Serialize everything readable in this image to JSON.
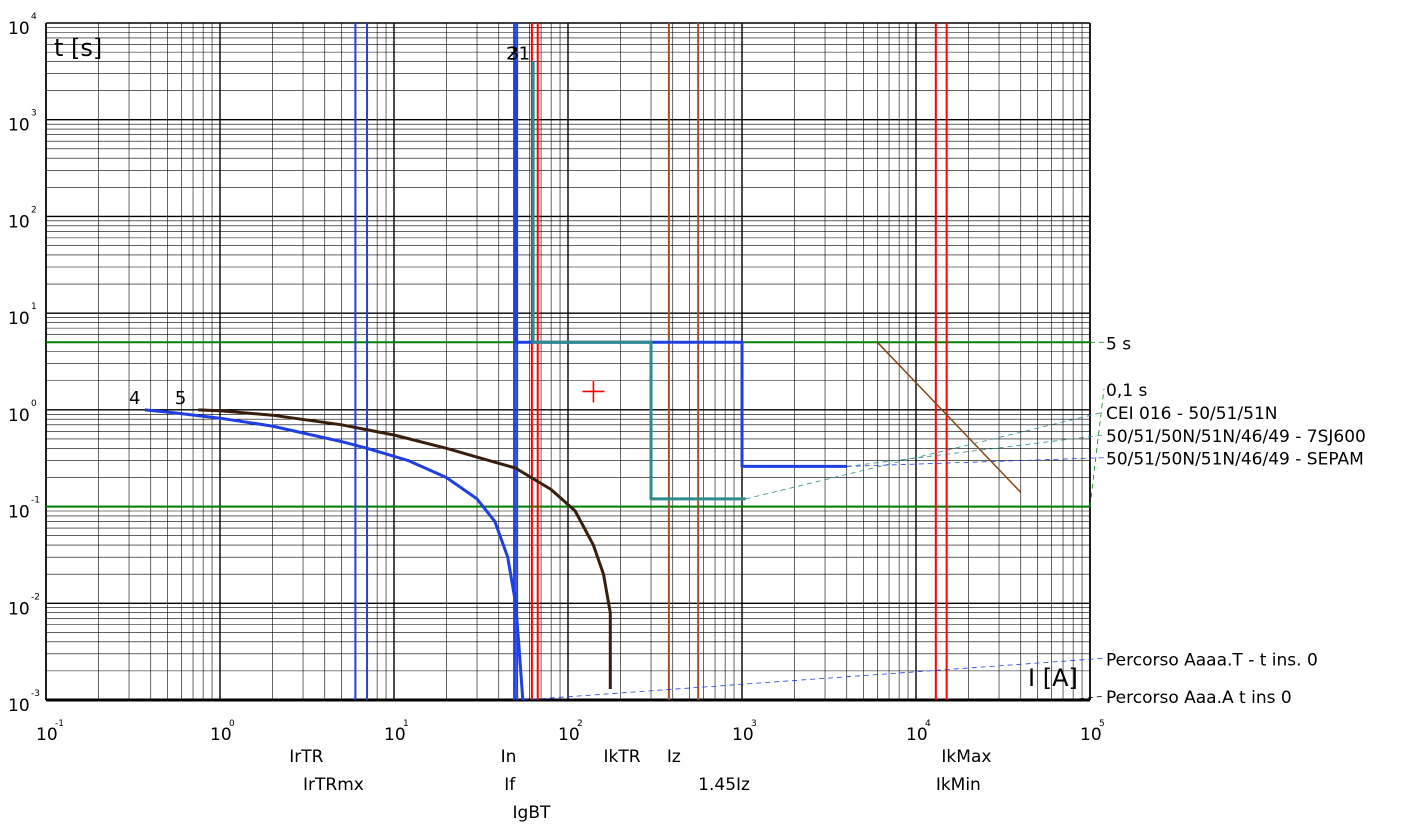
{
  "chart_data": {
    "type": "line",
    "title": "",
    "xlabel": "I [A]",
    "ylabel": "t [s]",
    "x_scale": "log",
    "y_scale": "log",
    "xlim": [
      0.1,
      100000
    ],
    "ylim": [
      0.001,
      10000
    ],
    "grid": true,
    "x_ticks": [
      {
        "base": "10",
        "exp": "-1"
      },
      {
        "base": "10",
        "exp": "0"
      },
      {
        "base": "10",
        "exp": "1"
      },
      {
        "base": "10",
        "exp": "2"
      },
      {
        "base": "10",
        "exp": "3"
      },
      {
        "base": "10",
        "exp": "4"
      },
      {
        "base": "10",
        "exp": "5"
      }
    ],
    "y_ticks": [
      {
        "base": "10",
        "exp": "4"
      },
      {
        "base": "10",
        "exp": "3"
      },
      {
        "base": "10",
        "exp": "2"
      },
      {
        "base": "10",
        "exp": "1"
      },
      {
        "base": "10",
        "exp": "0"
      },
      {
        "base": "10",
        "exp": "-1"
      },
      {
        "base": "10",
        "exp": "-2"
      },
      {
        "base": "10",
        "exp": "-3"
      }
    ],
    "horizontal_lines": [
      {
        "y": 5,
        "color": "#008000"
      },
      {
        "y": 0.1,
        "color": "#008000"
      }
    ],
    "vertical_lines": [
      {
        "x": 6,
        "color": "#1f3fe0"
      },
      {
        "x": 7,
        "color": "#1f3fe0"
      },
      {
        "x": 49,
        "color": "#1f3fe0"
      },
      {
        "x": 51,
        "color": "#1f3fe0"
      },
      {
        "x": 62,
        "color": "#ff0000"
      },
      {
        "x": 67,
        "color": "#ff0000"
      },
      {
        "x": 380,
        "color": "#a0522d"
      },
      {
        "x": 560,
        "color": "#a0522d"
      },
      {
        "x": 13000,
        "color": "#ff0000"
      },
      {
        "x": 15000,
        "color": "#ff0000"
      }
    ],
    "series": [
      {
        "color": "#1f3fe0",
        "width": 3,
        "points": [
          [
            50,
            4000
          ],
          [
            50,
            5
          ],
          [
            1000,
            5
          ],
          [
            1000,
            0.26
          ],
          [
            4000,
            0.26
          ]
        ]
      },
      {
        "color": "#2e8b8b",
        "width": 3,
        "points": [
          [
            63,
            4000
          ],
          [
            63,
            5
          ],
          [
            300,
            5
          ],
          [
            300,
            0.12
          ],
          [
            1050,
            0.12
          ]
        ]
      },
      {
        "color": "#1f3fe0",
        "width": 3,
        "points": [
          [
            0.37,
            1.0
          ],
          [
            0.55,
            0.93
          ],
          [
            1,
            0.82
          ],
          [
            2,
            0.68
          ],
          [
            5,
            0.47
          ],
          [
            7,
            0.4
          ],
          [
            12,
            0.3
          ],
          [
            20,
            0.2
          ],
          [
            30,
            0.12
          ],
          [
            38,
            0.07
          ],
          [
            45,
            0.03
          ],
          [
            50,
            0.01
          ],
          [
            52,
            0.004
          ],
          [
            55,
            0.001
          ]
        ]
      },
      {
        "color": "#3a1e0c",
        "width": 3,
        "points": [
          [
            0.75,
            1.0
          ],
          [
            1,
            0.98
          ],
          [
            2,
            0.88
          ],
          [
            5,
            0.7
          ],
          [
            10,
            0.55
          ],
          [
            20,
            0.4
          ],
          [
            35,
            0.3
          ],
          [
            50,
            0.25
          ],
          [
            80,
            0.15
          ],
          [
            110,
            0.09
          ],
          [
            140,
            0.04
          ],
          [
            160,
            0.02
          ],
          [
            175,
            0.008
          ],
          [
            175,
            0.0013
          ]
        ]
      },
      {
        "color": "#8b4513",
        "width": 1.5,
        "points": [
          [
            6000,
            5
          ],
          [
            40000,
            0.14
          ]
        ]
      }
    ],
    "annotations": [
      {
        "text": "4",
        "x": 0.3,
        "y": 1.15
      },
      {
        "text": "5",
        "x": 0.55,
        "y": 1.15
      },
      {
        "text": "1",
        "x": 52,
        "y": 4200
      },
      {
        "text": "2",
        "x": 44,
        "y": 4200
      },
      {
        "text": "3",
        "x": 45,
        "y": 4200
      }
    ],
    "marker": {
      "type": "cross",
      "x": 140,
      "y": 1.55,
      "color": "#ff0000"
    },
    "legend": {
      "placement": "right",
      "entries": [
        {
          "text": "5 s",
          "y": 5
        },
        {
          "text": "0,1 s",
          "y": 1.65
        },
        {
          "text": "CEI 016 - 50/51/51N",
          "y": 0.95
        },
        {
          "text": "50/51/50N/51N/46/49 - 7SJ600",
          "y": 0.55
        },
        {
          "text": "50/51/50N/51N/46/49 - SEPAM",
          "y": 0.32
        },
        {
          "text": "Percorso Aaaa.T - t ins. 0",
          "y": 0.0027
        },
        {
          "text": "Percorso Aaa.A t ins 0",
          "y": 0.0011
        }
      ]
    },
    "x_markers": [
      {
        "text": "IrTR",
        "row": 0,
        "x": 2.5
      },
      {
        "text": "IrTRmx",
        "row": 1,
        "x": 3.0
      },
      {
        "text": "In",
        "row": 0,
        "x": 41
      },
      {
        "text": "If",
        "row": 1,
        "x": 43
      },
      {
        "text": "IgBT",
        "row": 2,
        "x": 48
      },
      {
        "text": "IkTR",
        "row": 0,
        "x": 160
      },
      {
        "text": "Iz",
        "row": 0,
        "x": 370
      },
      {
        "text": "1.45Iz",
        "row": 1,
        "x": 560
      },
      {
        "text": "IkMax",
        "row": 0,
        "x": 14000
      },
      {
        "text": "IkMin",
        "row": 1,
        "x": 13000
      }
    ]
  }
}
